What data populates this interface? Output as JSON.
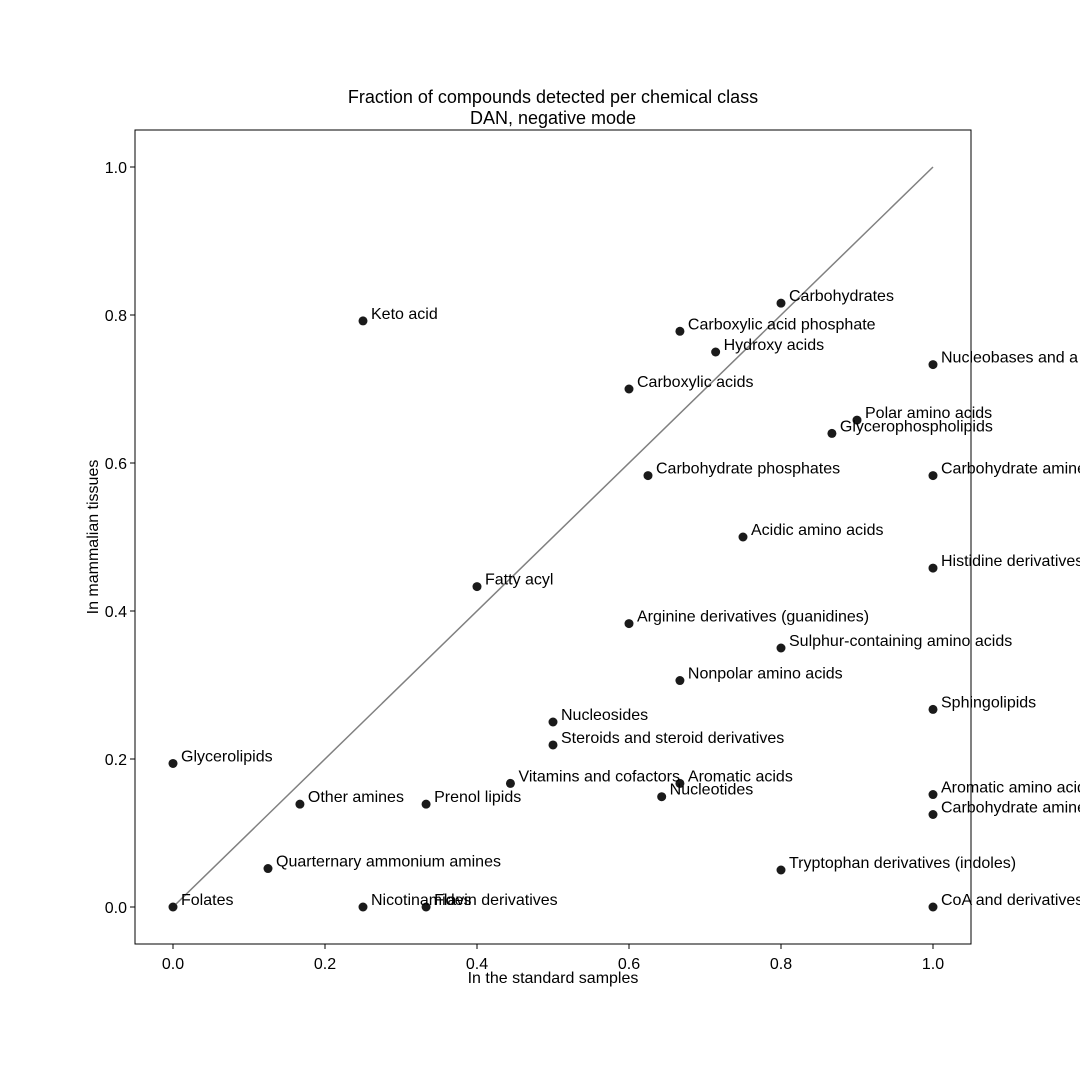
{
  "chart_data": {
    "type": "scatter",
    "title": "Fraction of compounds detected per chemical class",
    "subtitle": "DAN, negative mode",
    "xlabel": "In the standard samples",
    "ylabel": "In mammalian tissues",
    "xlim": [
      -0.05,
      1.05
    ],
    "ylim": [
      -0.05,
      1.05
    ],
    "xticks": [
      "0.0",
      "0.2",
      "0.4",
      "0.6",
      "0.8",
      "1.0"
    ],
    "yticks": [
      "0.0",
      "0.2",
      "0.4",
      "0.6",
      "0.8",
      "1.0"
    ],
    "reference_line": {
      "x": [
        0,
        1
      ],
      "y": [
        0,
        1
      ],
      "color": "#808080"
    },
    "point_color": "#1a1a1a",
    "points": [
      {
        "label": "Keto acid",
        "x": 0.25,
        "y": 0.792
      },
      {
        "label": "Carbohydrates",
        "x": 0.8,
        "y": 0.816
      },
      {
        "label": "Carboxylic acid phosphate",
        "x": 0.667,
        "y": 0.778
      },
      {
        "label": "Hydroxy acids",
        "x": 0.714,
        "y": 0.75
      },
      {
        "label": "Nucleobases and a",
        "x": 1.0,
        "y": 0.733
      },
      {
        "label": "Carboxylic acids",
        "x": 0.6,
        "y": 0.7
      },
      {
        "label": "Polar amino acids",
        "x": 0.9,
        "y": 0.658
      },
      {
        "label": "Glycerophospholipids",
        "x": 0.867,
        "y": 0.64
      },
      {
        "label": "Carbohydrate phosphates",
        "x": 0.625,
        "y": 0.583
      },
      {
        "label": "Carbohydrate amine",
        "x": 1.0,
        "y": 0.583
      },
      {
        "label": "Acidic amino acids",
        "x": 0.75,
        "y": 0.5
      },
      {
        "label": "Histidine derivatives",
        "x": 1.0,
        "y": 0.458
      },
      {
        "label": "Fatty acyl",
        "x": 0.4,
        "y": 0.433
      },
      {
        "label": "Arginine derivatives (guanidines)",
        "x": 0.6,
        "y": 0.383
      },
      {
        "label": "Sulphur-containing amino acids",
        "x": 0.8,
        "y": 0.35
      },
      {
        "label": "Nonpolar amino acids",
        "x": 0.667,
        "y": 0.306
      },
      {
        "label": "Sphingolipids",
        "x": 1.0,
        "y": 0.267
      },
      {
        "label": "Nucleosides",
        "x": 0.5,
        "y": 0.25
      },
      {
        "label": "Steroids and steroid derivatives",
        "x": 0.5,
        "y": 0.219
      },
      {
        "label": "Glycerolipids",
        "x": 0.0,
        "y": 0.194
      },
      {
        "label": "Vitamins and cofactors",
        "x": 0.444,
        "y": 0.167
      },
      {
        "label": "Aromatic acids",
        "x": 0.667,
        "y": 0.167
      },
      {
        "label": "Nucleotides",
        "x": 0.643,
        "y": 0.149
      },
      {
        "label": "Aromatic amino acid",
        "x": 1.0,
        "y": 0.152
      },
      {
        "label": "Other amines",
        "x": 0.167,
        "y": 0.139
      },
      {
        "label": "Prenol lipids",
        "x": 0.333,
        "y": 0.139
      },
      {
        "label": "Carbohydrate amine",
        "x": 1.0,
        "y": 0.125
      },
      {
        "label": "Quarternary ammonium amines",
        "x": 0.125,
        "y": 0.052
      },
      {
        "label": "Tryptophan derivatives (indoles)",
        "x": 0.8,
        "y": 0.05
      },
      {
        "label": "Folates",
        "x": 0.0,
        "y": 0.0
      },
      {
        "label": "Nicotinamides",
        "x": 0.25,
        "y": 0.0
      },
      {
        "label": "Flavin derivatives",
        "x": 0.333,
        "y": 0.0
      },
      {
        "label": "CoA and derivatives",
        "x": 1.0,
        "y": 0.0
      }
    ]
  }
}
